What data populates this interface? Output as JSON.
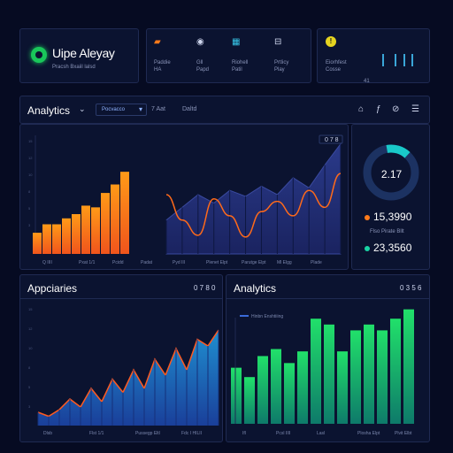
{
  "brand": {
    "title": "Uipe Aleyay",
    "subtitle": "Pracsh Bxaiil lalsd"
  },
  "stats": [
    {
      "icon": "chat-icon",
      "symbol": "▰",
      "color": "#ff7a1a",
      "label": "Paddie\nHA"
    },
    {
      "icon": "user-icon",
      "symbol": "◉",
      "color": "#cfd6ee",
      "label": "Gll\nPapd"
    },
    {
      "icon": "chart-icon",
      "symbol": "▦",
      "color": "#38c6e8",
      "label": "Riohell\nPatil"
    },
    {
      "icon": "doc-icon",
      "symbol": "⊟",
      "color": "#cfd6ee",
      "label": "Prtlicy\nPlay"
    }
  ],
  "notice": {
    "label": "Eiorhfest\nCosse",
    "number": "41"
  },
  "analytics": {
    "title": "Analytics",
    "dropdown": "Pocvacco",
    "options": [
      "7 Aat",
      "Daltd"
    ]
  },
  "main_chart": {
    "corner_value": "0 7 8",
    "x_labels": [
      "Q  IIII",
      "Pxat  1/1",
      "Pcidd",
      "Padat",
      "Pyd  III",
      "Plenet  Elpt",
      "Parutge  Elpt",
      "Ml  Elgg",
      "Plade"
    ]
  },
  "donut": {
    "center": "2.17",
    "value_a": "15,3990",
    "value_b": "23,3560",
    "mini": "Flso Pirate Bllt",
    "color_a": "#ff7a1a",
    "color_b": "#19d3a4"
  },
  "bottom_left": {
    "title": "Appciaries",
    "value": "0 7 8 0",
    "x_labels": [
      "Dlsb",
      "Flst  1/1",
      "Pussegp  Eltl",
      "Fdc  I  HILII"
    ]
  },
  "bottom_right": {
    "title": "Analytics",
    "value": "0 3 5 6",
    "legend": "Hinbn Enshtiiing",
    "x_labels": [
      "Ifl",
      "Pcsl  IIII",
      "Lasl",
      "Plosha  Elpt",
      "Plvit  Elbt"
    ]
  },
  "chart_data": [
    {
      "type": "bar",
      "name": "main-orange-bars",
      "values": [
        25,
        35,
        35,
        42,
        47,
        57,
        55,
        72,
        82,
        97
      ]
    },
    {
      "type": "area",
      "name": "main-navy-area",
      "values": [
        40,
        55,
        70,
        60,
        75,
        68,
        80,
        70,
        90,
        78,
        105,
        130
      ]
    },
    {
      "type": "line",
      "name": "main-orange-line",
      "values": [
        70,
        40,
        22,
        65,
        45,
        20,
        50,
        62,
        45,
        75,
        55,
        95
      ]
    },
    {
      "type": "area",
      "name": "bottom-left-area",
      "values": [
        10,
        7,
        12,
        20,
        14,
        28,
        18,
        35,
        25,
        42,
        28,
        50,
        38,
        58,
        42,
        65,
        60,
        72
      ]
    },
    {
      "type": "bar",
      "name": "bottom-right-bars",
      "values": [
        48,
        40,
        58,
        64,
        52,
        62,
        90,
        85,
        62,
        80,
        85,
        80,
        90,
        98
      ]
    }
  ]
}
